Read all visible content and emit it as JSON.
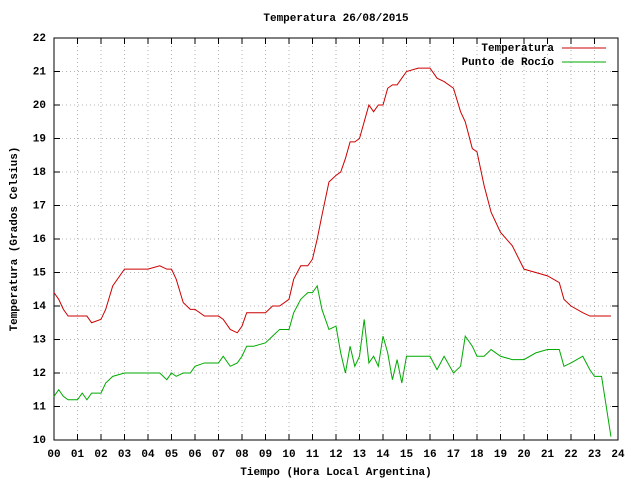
{
  "chart_data": {
    "type": "line",
    "title": "Temperatura 26/08/2015",
    "x_label": "Tiempo (Hora Local Argentina)",
    "y_label": "Temperatura (Grados Celsius)",
    "x": [
      0,
      0.2,
      0.4,
      0.6,
      1.0,
      1.2,
      1.4,
      1.6,
      2.0,
      2.2,
      2.5,
      3.0,
      3.5,
      4.0,
      4.5,
      4.8,
      5.0,
      5.2,
      5.5,
      5.8,
      6.0,
      6.4,
      6.8,
      7.0,
      7.2,
      7.5,
      7.8,
      8.0,
      8.2,
      8.5,
      9.0,
      9.3,
      9.6,
      10.0,
      10.2,
      10.5,
      10.8,
      11.0,
      11.2,
      11.4,
      11.7,
      12.0,
      12.2,
      12.4,
      12.6,
      12.8,
      13.0,
      13.2,
      13.4,
      13.6,
      13.8,
      14.0,
      14.2,
      14.4,
      14.6,
      14.8,
      15.0,
      15.5,
      16.0,
      16.3,
      16.6,
      17.0,
      17.3,
      17.5,
      17.8,
      18.0,
      18.3,
      18.6,
      19.0,
      19.5,
      20.0,
      20.5,
      21.0,
      21.5,
      21.7,
      22.0,
      22.5,
      22.8,
      23.0,
      23.3,
      23.5,
      23.7
    ],
    "series": [
      {
        "name": "Temperatura",
        "color": "#cc0000",
        "values": [
          14.4,
          14.2,
          13.9,
          13.7,
          13.7,
          13.7,
          13.7,
          13.5,
          13.6,
          13.9,
          14.6,
          15.1,
          15.1,
          15.1,
          15.2,
          15.1,
          15.1,
          14.8,
          14.1,
          13.9,
          13.9,
          13.7,
          13.7,
          13.7,
          13.6,
          13.3,
          13.2,
          13.4,
          13.8,
          13.8,
          13.8,
          14.0,
          14.0,
          14.2,
          14.8,
          15.2,
          15.2,
          15.4,
          16.0,
          16.7,
          17.7,
          17.9,
          18.0,
          18.4,
          18.9,
          18.9,
          19.0,
          19.5,
          20.0,
          19.8,
          20.0,
          20.0,
          20.5,
          20.6,
          20.6,
          20.8,
          21.0,
          21.1,
          21.1,
          20.8,
          20.7,
          20.5,
          19.8,
          19.5,
          18.7,
          18.6,
          17.6,
          16.8,
          16.2,
          15.8,
          15.1,
          15.0,
          14.9,
          14.7,
          14.2,
          14.0,
          13.8,
          13.7,
          13.7,
          13.7,
          13.7,
          13.7
        ]
      },
      {
        "name": "Punto de Rocío",
        "color": "#00aa00",
        "values": [
          11.3,
          11.5,
          11.3,
          11.2,
          11.2,
          11.4,
          11.2,
          11.4,
          11.4,
          11.7,
          11.9,
          12.0,
          12.0,
          12.0,
          12.0,
          11.8,
          12.0,
          11.9,
          12.0,
          12.0,
          12.2,
          12.3,
          12.3,
          12.3,
          12.5,
          12.2,
          12.3,
          12.5,
          12.8,
          12.8,
          12.9,
          13.1,
          13.3,
          13.3,
          13.8,
          14.2,
          14.4,
          14.4,
          14.6,
          13.9,
          13.3,
          13.4,
          12.6,
          12.0,
          12.8,
          12.2,
          12.5,
          13.6,
          12.3,
          12.5,
          12.2,
          13.1,
          12.6,
          11.8,
          12.4,
          11.7,
          12.5,
          12.5,
          12.5,
          12.1,
          12.5,
          12.0,
          12.2,
          13.1,
          12.8,
          12.5,
          12.5,
          12.7,
          12.5,
          12.4,
          12.4,
          12.6,
          12.7,
          12.7,
          12.2,
          12.3,
          12.5,
          12.1,
          11.9,
          11.9,
          11.0,
          10.1
        ]
      }
    ],
    "xlim": [
      0,
      24
    ],
    "xticks": [
      {
        "value": 0,
        "label": "00"
      },
      {
        "value": 1,
        "label": "01"
      },
      {
        "value": 2,
        "label": "02"
      },
      {
        "value": 3,
        "label": "03"
      },
      {
        "value": 4,
        "label": "04"
      },
      {
        "value": 5,
        "label": "05"
      },
      {
        "value": 6,
        "label": "06"
      },
      {
        "value": 7,
        "label": "07"
      },
      {
        "value": 8,
        "label": "08"
      },
      {
        "value": 9,
        "label": "09"
      },
      10,
      11,
      12,
      13,
      14,
      15,
      16,
      17,
      18,
      19,
      20,
      21,
      22,
      23,
      24
    ],
    "ylim": [
      10,
      22
    ],
    "yticks": [
      10,
      11,
      12,
      13,
      14,
      15,
      16,
      17,
      18,
      19,
      20,
      21,
      22
    ],
    "grid": true,
    "legend": "top-right"
  }
}
